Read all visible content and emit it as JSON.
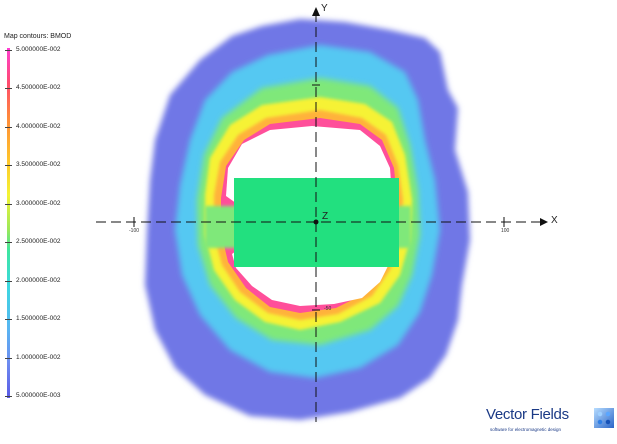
{
  "legend": {
    "title": "Map contours: BMOD",
    "labels": [
      "5.000000E-002",
      "4.500000E-002",
      "4.000000E-002",
      "3.500000E-002",
      "3.000000E-002",
      "2.500000E-002",
      "2.000000E-002",
      "1.500000E-002",
      "1.000000E-002",
      "5.000000E-003"
    ]
  },
  "axes": {
    "x_label": "X",
    "y_label": "Y",
    "z_label": "Z",
    "x_ticks": [
      "-100",
      "100"
    ],
    "y_ticks": [
      "-50"
    ]
  },
  "colors": {
    "outer": "#6f77e6",
    "cyan": "#55c8f2",
    "green": "#7fe87a",
    "yellow": "#f6f234",
    "orange": "#ffb23a",
    "pink": "#ff4f9a",
    "magnet": "#22e07f"
  },
  "logo": {
    "name": "Vector Fields",
    "tagline": "software for electromagnetic design"
  }
}
